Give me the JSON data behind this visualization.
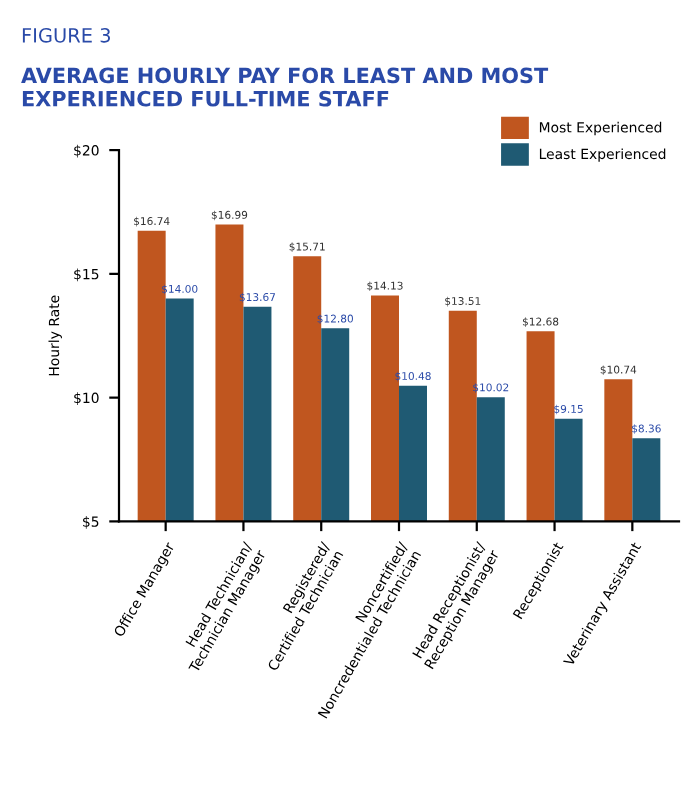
{
  "chart_data": {
    "type": "bar",
    "subtitle": "FIGURE 3",
    "title": "AVERAGE HOURLY PAY FOR LEAST AND MOST EXPERIENCED FULL-TIME STAFF",
    "ylabel": "Hourly Rate",
    "categories": [
      "Office Manager",
      "Head Technician/\nTechnician Manager",
      "Registered/\nCertified Technician",
      "Noncertified/\nNoncredentialed Technician",
      "Head Receptionist/\nReception Manager",
      "Receptionist",
      "Veterinary Assistant"
    ],
    "series": [
      {
        "name": "Most Experienced",
        "color": "#c0561f",
        "values": [
          16.74,
          16.99,
          15.71,
          14.13,
          13.51,
          12.68,
          10.74
        ],
        "value_labels": [
          "$16.74",
          "$16.99",
          "$15.71",
          "$14.13",
          "$13.51",
          "$12.68",
          "$10.74"
        ]
      },
      {
        "name": "Least Experienced",
        "color": "#1f5a73",
        "values": [
          14.0,
          13.67,
          12.8,
          10.48,
          10.02,
          9.15,
          8.36
        ],
        "value_labels": [
          "$14.00",
          "$13.67",
          "$12.80",
          "$10.48",
          "$10.02",
          "$9.15",
          "$8.36"
        ]
      }
    ],
    "ylim": [
      5,
      20
    ],
    "yticks": [
      {
        "value": 5,
        "label": "$5"
      },
      {
        "value": 10,
        "label": "$10"
      },
      {
        "value": 15,
        "label": "$15"
      },
      {
        "value": 20,
        "label": "$20"
      }
    ],
    "legend": "top right",
    "grid": false
  }
}
